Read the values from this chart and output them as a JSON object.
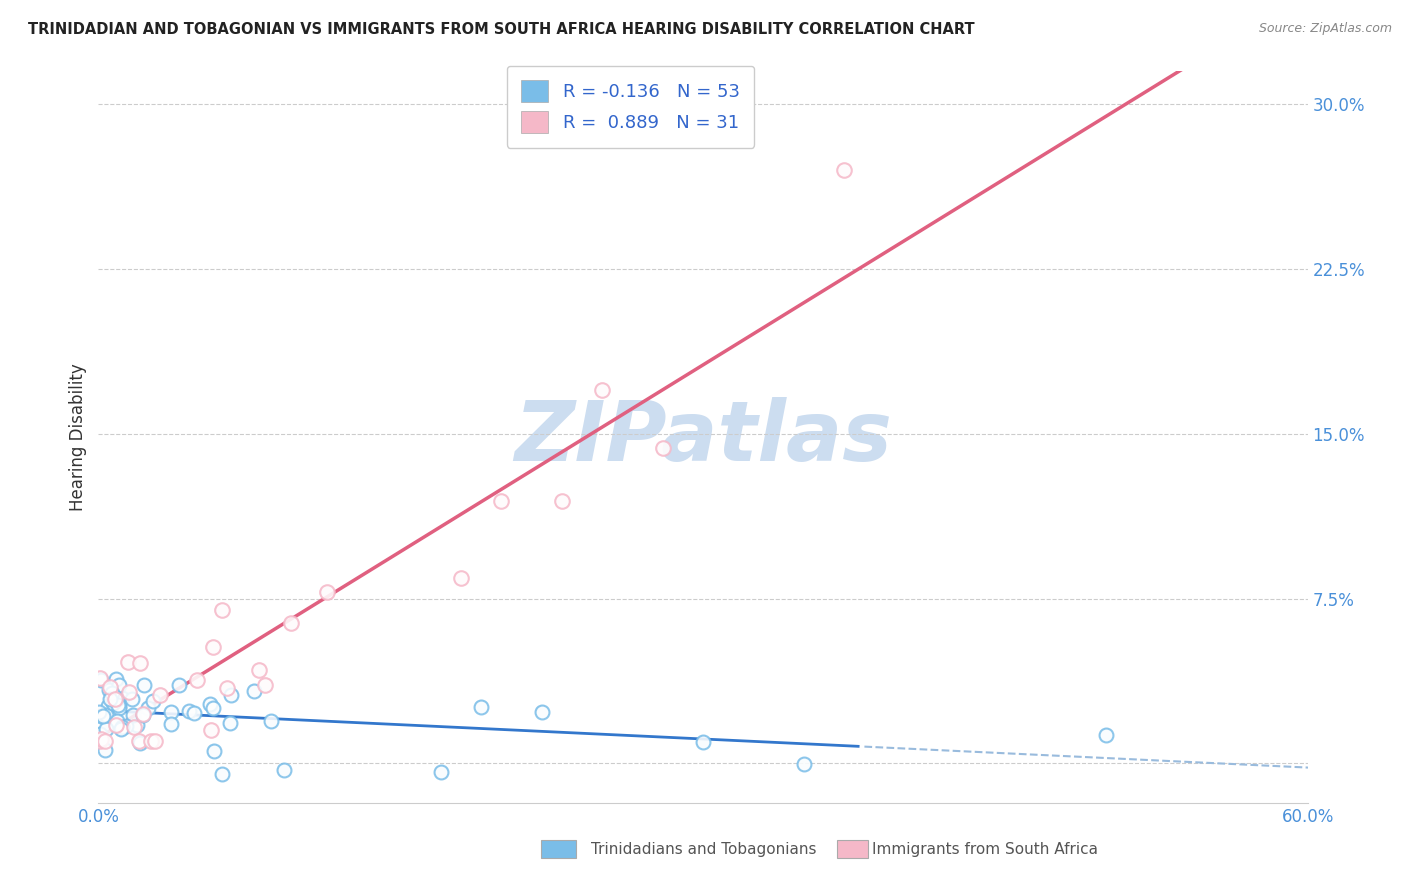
{
  "title": "TRINIDADIAN AND TOBAGONIAN VS IMMIGRANTS FROM SOUTH AFRICA HEARING DISABILITY CORRELATION CHART",
  "source": "Source: ZipAtlas.com",
  "legend_bottom_labels": [
    "Trinidadians and Tobagonians",
    "Immigrants from South Africa"
  ],
  "ylabel": "Hearing Disability",
  "xlim": [
    0.0,
    0.6
  ],
  "ylim": [
    -0.018,
    0.315
  ],
  "yticks": [
    0.0,
    0.075,
    0.15,
    0.225,
    0.3
  ],
  "yticklabels": [
    "",
    "7.5%",
    "15.0%",
    "22.5%",
    "30.0%"
  ],
  "xtick_left_label": "0.0%",
  "xtick_right_label": "60.0%",
  "blue_R": -0.136,
  "blue_N": 53,
  "pink_R": 0.889,
  "pink_N": 31,
  "blue_color": "#7abde8",
  "blue_edge_color": "#5599cc",
  "pink_color": "#f5b8c8",
  "pink_edge_color": "#e06080",
  "trendline_blue_solid_color": "#3377cc",
  "trendline_blue_dash_color": "#99bbdd",
  "trendline_pink_color": "#e06080",
  "watermark": "ZIPatlas",
  "watermark_color": "#ccddf0",
  "grid_color": "#cccccc",
  "title_color": "#222222",
  "source_color": "#888888",
  "tick_color": "#4a90d9",
  "ylabel_color": "#333333"
}
